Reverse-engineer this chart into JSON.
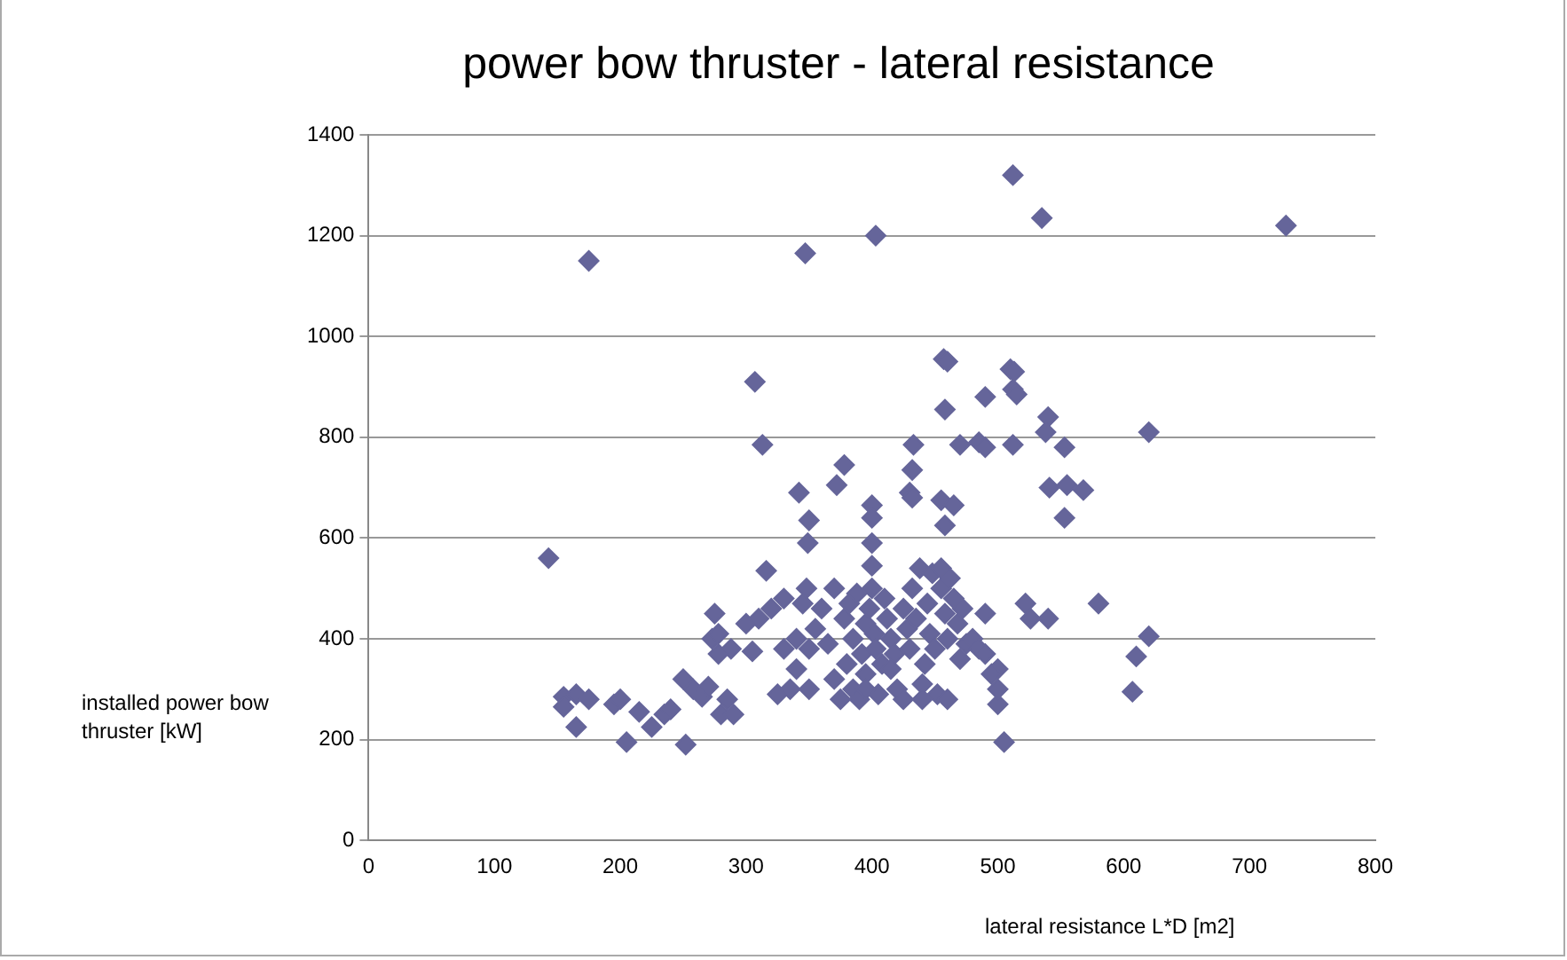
{
  "chart_data": {
    "type": "scatter",
    "title": "power bow thruster - lateral resistance",
    "xlabel": "lateral resistance L*D [m2]",
    "ylabel": "installed power bow thruster [kW]",
    "xlim": [
      0,
      800
    ],
    "xticks": [
      0,
      100,
      200,
      300,
      400,
      500,
      600,
      700,
      800
    ],
    "ylim": [
      0,
      1400
    ],
    "yticks": [
      0,
      200,
      400,
      600,
      800,
      1000,
      1200,
      1400
    ],
    "grid": "y",
    "marker": "diamond",
    "series": [
      {
        "color": "#65659a",
        "x": [
          175,
          347,
          403,
          512,
          535,
          729,
          307,
          313,
          342,
          350,
          349,
          316,
          143,
          378,
          372,
          433,
          432,
          430,
          432,
          400,
          400,
          400,
          400,
          457,
          460,
          458,
          510,
          513,
          512,
          515,
          490,
          470,
          485,
          490,
          512,
          540,
          538,
          553,
          541,
          555,
          568,
          553,
          620,
          580,
          620,
          610,
          607,
          505,
          500,
          500,
          500,
          490,
          522,
          526,
          540,
          455,
          465,
          458,
          155,
          155,
          165,
          165,
          175,
          195,
          200,
          205,
          215,
          225,
          235,
          240,
          250,
          252,
          258,
          265,
          270,
          273,
          278,
          275,
          280,
          285,
          290,
          288,
          278,
          300,
          305,
          310,
          320,
          325,
          330,
          330,
          335,
          340,
          340,
          345,
          348,
          350,
          350,
          355,
          360,
          365,
          370,
          370,
          375,
          378,
          380,
          382,
          385,
          385,
          388,
          390,
          392,
          395,
          395,
          398,
          400,
          402,
          403,
          405,
          408,
          410,
          412,
          415,
          418,
          420,
          425,
          425,
          428,
          430,
          432,
          435,
          438,
          440,
          442,
          444,
          446,
          448,
          450,
          452,
          455,
          455,
          458,
          460,
          460,
          462,
          465,
          468,
          470,
          472,
          475,
          480,
          485,
          490,
          495,
          440,
          415,
          395
        ],
        "values": [
          1150,
          1165,
          1200,
          1320,
          1235,
          1220,
          910,
          785,
          690,
          635,
          590,
          535,
          560,
          745,
          705,
          785,
          735,
          690,
          680,
          665,
          640,
          590,
          545,
          955,
          950,
          855,
          935,
          930,
          895,
          885,
          880,
          785,
          790,
          780,
          785,
          840,
          810,
          780,
          700,
          705,
          695,
          640,
          810,
          470,
          405,
          365,
          295,
          195,
          270,
          300,
          340,
          450,
          470,
          440,
          440,
          675,
          665,
          625,
          285,
          265,
          290,
          225,
          280,
          270,
          280,
          195,
          255,
          225,
          250,
          260,
          320,
          190,
          300,
          285,
          305,
          400,
          410,
          450,
          250,
          280,
          250,
          380,
          370,
          430,
          375,
          440,
          460,
          290,
          480,
          380,
          300,
          400,
          340,
          470,
          500,
          380,
          300,
          420,
          460,
          390,
          320,
          500,
          280,
          440,
          350,
          470,
          300,
          400,
          490,
          280,
          370,
          430,
          330,
          460,
          500,
          410,
          380,
          290,
          350,
          480,
          440,
          400,
          370,
          300,
          460,
          280,
          420,
          380,
          500,
          440,
          540,
          310,
          350,
          470,
          410,
          530,
          380,
          290,
          540,
          500,
          450,
          280,
          400,
          520,
          480,
          430,
          360,
          460,
          390,
          400,
          380,
          370,
          330,
          280,
          340,
          300
        ]
      }
    ]
  }
}
